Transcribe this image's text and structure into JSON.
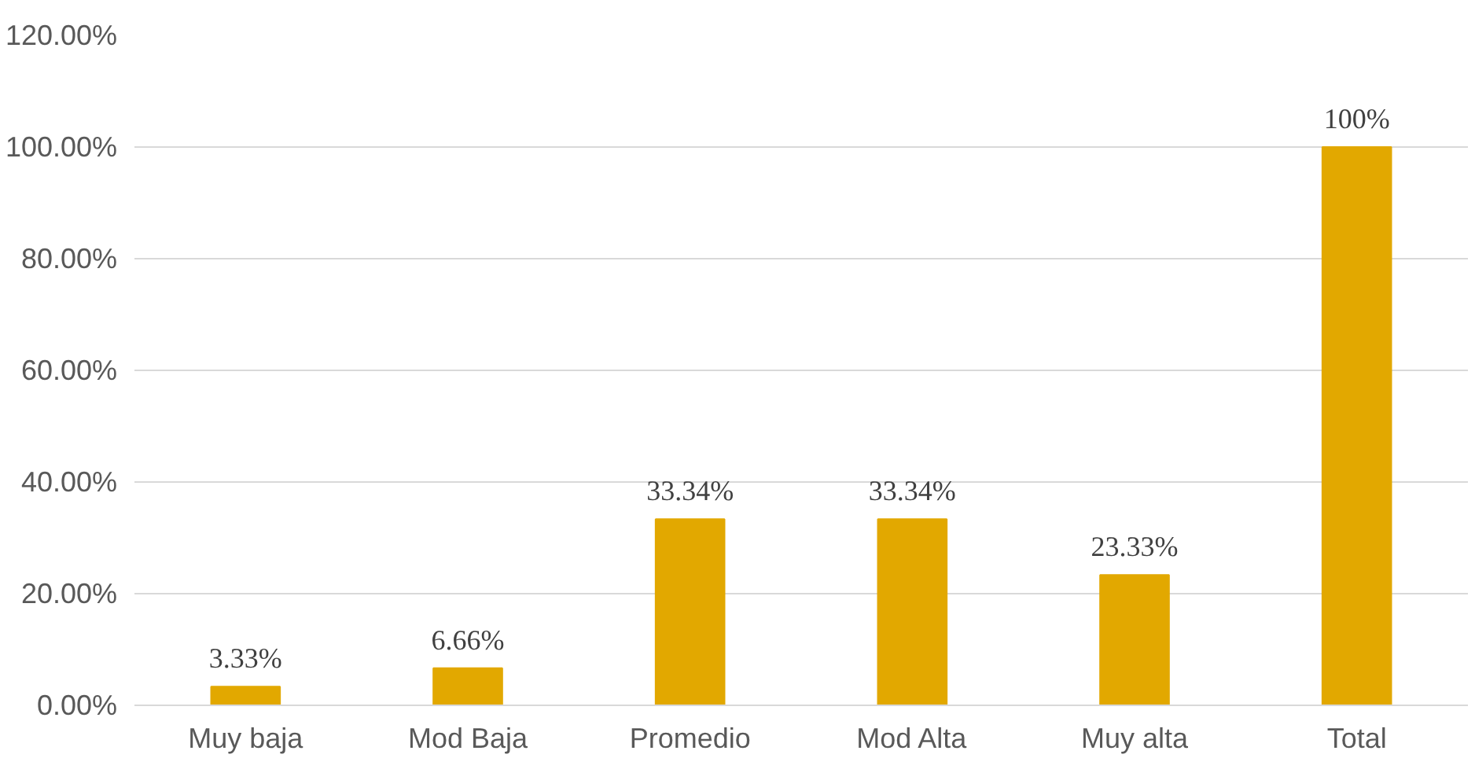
{
  "chart_data": {
    "type": "bar",
    "categories": [
      "Muy baja",
      "Mod Baja",
      "Promedio",
      "Mod Alta",
      "Muy alta",
      "Total"
    ],
    "values": [
      3.33,
      6.66,
      33.34,
      33.34,
      23.33,
      100
    ],
    "value_labels": [
      "3.33%",
      "6.66%",
      "33.34%",
      "33.34%",
      "23.33%",
      "100%"
    ],
    "color": "#e2a800",
    "ylim": [
      0,
      120
    ],
    "yticks": [
      {
        "value": 0,
        "label": "0.00%"
      },
      {
        "value": 20,
        "label": "20.00%"
      },
      {
        "value": 40,
        "label": "40.00%"
      },
      {
        "value": 60,
        "label": "60.00%"
      },
      {
        "value": 80,
        "label": "80.00%"
      },
      {
        "value": 100,
        "label": "100.00%"
      },
      {
        "value": 120,
        "label": "120.00%"
      }
    ],
    "grid": "y"
  }
}
